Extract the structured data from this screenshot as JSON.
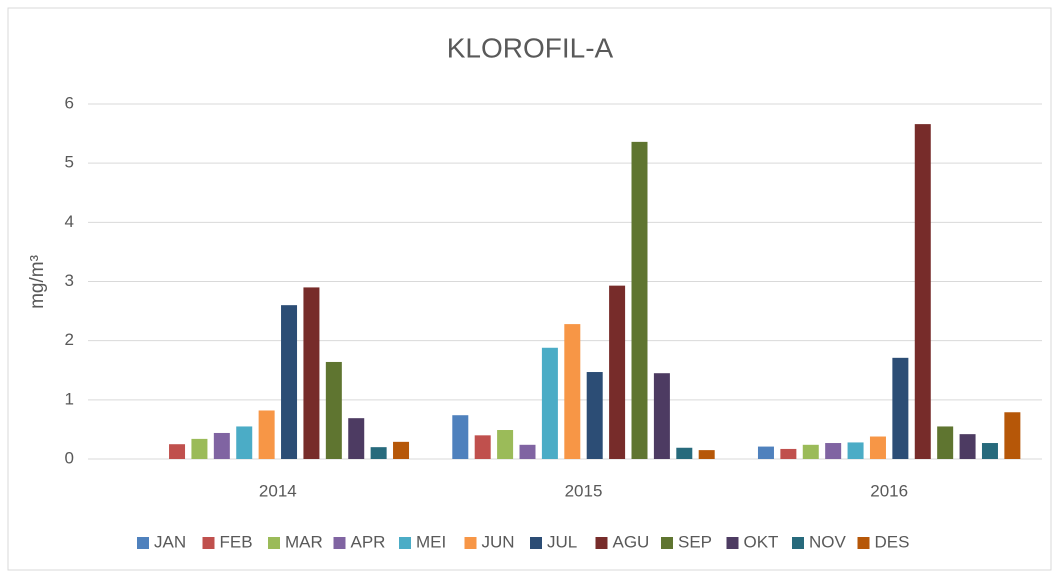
{
  "chart_data": {
    "type": "bar",
    "title": "KLOROFIL-A",
    "y_label": "mg/m³",
    "categories": [
      "2014",
      "2015",
      "2016"
    ],
    "series": [
      {
        "name": "JAN",
        "color": "#4f81bd",
        "values": [
          null,
          0.74,
          0.21
        ]
      },
      {
        "name": "FEB",
        "color": "#c0504d",
        "values": [
          0.25,
          0.4,
          0.17
        ]
      },
      {
        "name": "MAR",
        "color": "#9bbb59",
        "values": [
          0.34,
          0.49,
          0.24
        ]
      },
      {
        "name": "APR",
        "color": "#8064a2",
        "values": [
          0.44,
          0.24,
          0.27
        ]
      },
      {
        "name": "MEI",
        "color": "#4bacc6",
        "values": [
          0.55,
          1.88,
          0.28
        ]
      },
      {
        "name": "JUN",
        "color": "#f79646",
        "values": [
          0.82,
          2.28,
          0.38
        ]
      },
      {
        "name": "JUL",
        "color": "#2c4d75",
        "values": [
          2.6,
          1.47,
          1.71
        ]
      },
      {
        "name": "AGU",
        "color": "#772c2a",
        "values": [
          2.9,
          2.93,
          5.66
        ]
      },
      {
        "name": "SEP",
        "color": "#5f7530",
        "values": [
          1.64,
          5.36,
          0.55
        ]
      },
      {
        "name": "OKT",
        "color": "#4d3b62",
        "values": [
          0.69,
          1.45,
          0.42
        ]
      },
      {
        "name": "NOV",
        "color": "#276a7c",
        "values": [
          0.2,
          0.19,
          0.27
        ]
      },
      {
        "name": "DES",
        "color": "#b65708",
        "values": [
          0.29,
          0.15,
          0.79
        ]
      }
    ],
    "ylim": [
      0,
      6
    ],
    "yticks": [
      0,
      1,
      2,
      3,
      4,
      5,
      6
    ],
    "grid": true,
    "legend": "bottom"
  }
}
